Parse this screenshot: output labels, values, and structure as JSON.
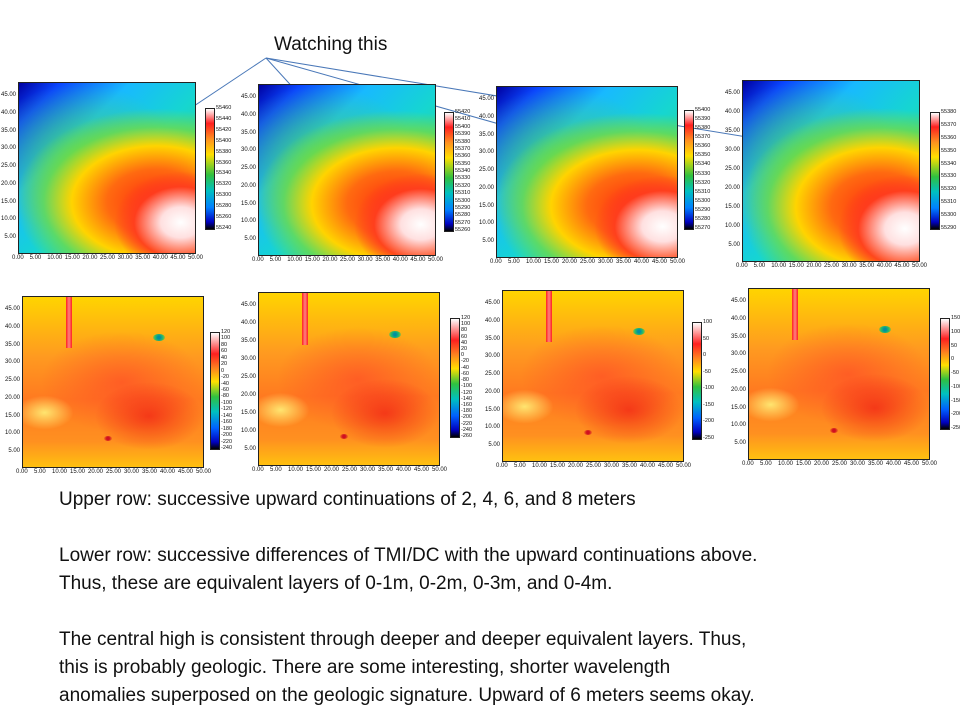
{
  "annotation": "Watching this",
  "x_ticks": [
    "0.00",
    "5.00",
    "10.00",
    "15.00",
    "20.00",
    "25.00",
    "30.00",
    "35.00",
    "40.00",
    "45.00",
    "50.00"
  ],
  "y_ticks": [
    "45.00",
    "40.00",
    "35.00",
    "30.00",
    "25.00",
    "20.00",
    "15.00",
    "10.00",
    "5.00"
  ],
  "upper_colorbars": [
    [
      "55460",
      "55440",
      "55420",
      "55400",
      "55380",
      "55360",
      "55340",
      "55320",
      "55300",
      "55280",
      "55260",
      "55240"
    ],
    [
      "55420",
      "55410",
      "55400",
      "55390",
      "55380",
      "55370",
      "55360",
      "55350",
      "55340",
      "55330",
      "55320",
      "55310",
      "55300",
      "55290",
      "55280",
      "55270",
      "55260"
    ],
    [
      "55400",
      "55390",
      "55380",
      "55370",
      "55360",
      "55350",
      "55340",
      "55330",
      "55320",
      "55310",
      "55300",
      "55290",
      "55280",
      "55270"
    ],
    [
      "55380",
      "55370",
      "55360",
      "55350",
      "55340",
      "55330",
      "55320",
      "55310",
      "55300",
      "55290"
    ]
  ],
  "lower_colorbars": [
    [
      "120",
      "100",
      "80",
      "60",
      "40",
      "20",
      "0",
      "-20",
      "-40",
      "-60",
      "-80",
      "-100",
      "-120",
      "-140",
      "-160",
      "-180",
      "-200",
      "-220",
      "-240"
    ],
    [
      "120",
      "100",
      "80",
      "60",
      "40",
      "20",
      "0",
      "-20",
      "-40",
      "-60",
      "-80",
      "-100",
      "-120",
      "-140",
      "-160",
      "-180",
      "-200",
      "-220",
      "-240",
      "-260"
    ],
    [
      "100",
      "50",
      "0",
      "-50",
      "-100",
      "-150",
      "-200",
      "-250"
    ],
    [
      "150",
      "100",
      "50",
      "0",
      "-50",
      "-100",
      "-150",
      "-200",
      "-250"
    ]
  ],
  "caption": {
    "line1": "Upper row: successive upward continuations of 2, 4, 6, and 8 meters",
    "line2": "Lower row: successive differences of TMI/DC with the upward continuations above.",
    "line3": "Thus, these are equivalent layers of 0-1m, 0-2m, 0-3m, and 0-4m.",
    "line4": "The central high is consistent through deeper and deeper equivalent layers. Thus,",
    "line5": "this is probably geologic. There are some interesting, shorter wavelength",
    "line6": "anomalies superposed on the geologic signature. Upward of 6 meters seems okay."
  },
  "colors": {
    "arrow": "#4a78b8"
  }
}
